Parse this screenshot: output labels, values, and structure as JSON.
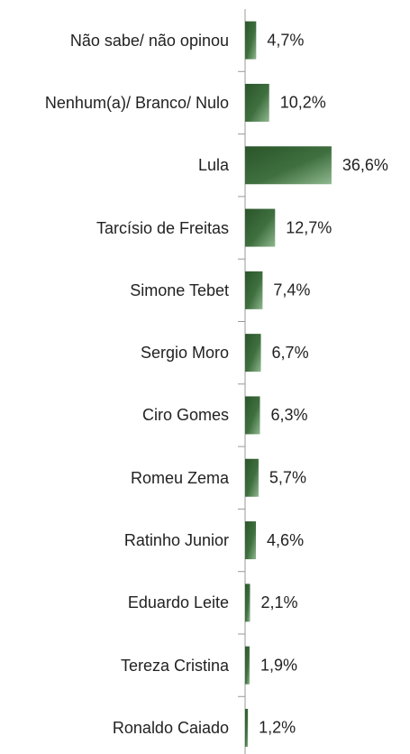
{
  "chart_data": {
    "type": "bar",
    "orientation": "horizontal",
    "categories": [
      "Não sabe/ não opinou",
      "Nenhum(a)/ Branco/ Nulo",
      "Lula",
      "Tarcísio de Freitas",
      "Simone Tebet",
      "Sergio Moro",
      "Ciro Gomes",
      "Romeu Zema",
      "Ratinho Junior",
      "Eduardo Leite",
      "Tereza Cristina",
      "Ronaldo Caiado"
    ],
    "values": [
      4.7,
      10.2,
      36.6,
      12.7,
      7.4,
      6.7,
      6.3,
      5.7,
      4.6,
      2.1,
      1.9,
      1.2
    ],
    "value_labels": [
      "4,7%",
      "10,2%",
      "36,6%",
      "12,7%",
      "7,4%",
      "6,7%",
      "6,3%",
      "5,7%",
      "4,6%",
      "2,1%",
      "1,9%",
      "1,2%"
    ],
    "color": "#3f6f3f"
  }
}
